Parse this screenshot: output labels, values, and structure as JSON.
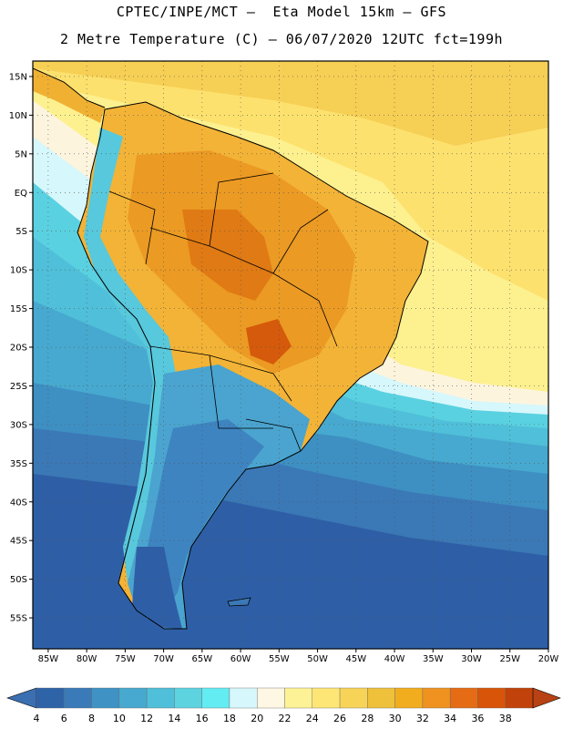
{
  "header": {
    "line1": "CPTEC/INPE/MCT –  Eta Model 15km – GFS",
    "line2": "2 Metre Temperature (C) – 06/07/2020 12UTC fct=199h"
  },
  "map": {
    "lat_labels": [
      "15N",
      "10N",
      "5N",
      "EQ",
      "5S",
      "10S",
      "15S",
      "20S",
      "25S",
      "30S",
      "35S",
      "40S",
      "45S",
      "50S",
      "55S"
    ],
    "lon_labels": [
      "85W",
      "80W",
      "75W",
      "70W",
      "65W",
      "60W",
      "55W",
      "50W",
      "45W",
      "40W",
      "35W",
      "30W",
      "25W",
      "20W"
    ]
  },
  "colorbar": {
    "labels": [
      "4",
      "6",
      "8",
      "10",
      "12",
      "14",
      "16",
      "18",
      "20",
      "22",
      "24",
      "26",
      "28",
      "30",
      "32",
      "34",
      "36",
      "38"
    ],
    "colors": [
      "#2f63a8",
      "#3a7ab8",
      "#3f93c4",
      "#47a9cf",
      "#50bfd9",
      "#5dd3e0",
      "#63ecf2",
      "#d6f7fb",
      "#fdf7e3",
      "#fdf295",
      "#fde675",
      "#f7d358",
      "#efc03a",
      "#f2ad1e",
      "#ef9220",
      "#e56c14",
      "#d85409",
      "#c1420a"
    ],
    "left_arrow_color": "#3a6fb2",
    "right_arrow_color": "#b84213"
  }
}
